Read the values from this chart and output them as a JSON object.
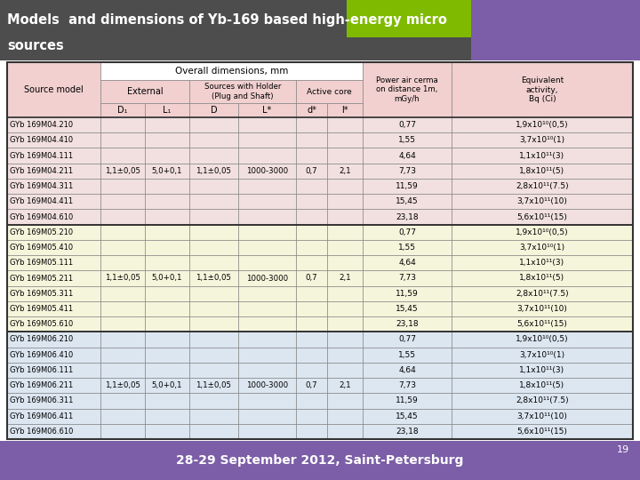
{
  "title_line1": "Models  and dimensions of Yb-169 based high-energy micro",
  "title_line2": "sources",
  "footer_text": "28-29 September 2012, Saint-Petersburg",
  "page_num": "19",
  "groups": [
    {
      "models": [
        "GYb 169M04.210",
        "GYb 169M04.410",
        "GYb 169M04.111",
        "GYb 169M04.211",
        "GYb 169M04.311",
        "GYb 169M04.411",
        "GYb 169M04.610"
      ],
      "D1": "1,1±0,05",
      "L1": "5,0+0,1",
      "D": "1,1±0,05",
      "L": "1000-3000",
      "d": "0,7",
      "l": "2,1",
      "power": [
        "0,77",
        "1,55",
        "4,64",
        "7,73",
        "11,59",
        "15,45",
        "23,18"
      ],
      "activity": [
        "1,9x10¹⁰(0,5)",
        "3,7x10¹⁰(1)",
        "1,1x10¹¹(3)",
        "1,8x10¹¹(5)",
        "2,8x10¹¹(7.5)",
        "3,7x10¹¹(10)",
        "5,6x10¹¹(15)"
      ],
      "bg": "#f2e0e0"
    },
    {
      "models": [
        "GYb 169M05.210",
        "GYb 169M05.410",
        "GYb 169M05.111",
        "GYb 169M05.211",
        "GYb 169M05.311",
        "GYb 169M05.411",
        "GYb 169M05.610"
      ],
      "D1": "1,1±0,05",
      "L1": "5,0+0,1",
      "D": "1,1±0,05",
      "L": "1000-3000",
      "d": "0,7",
      "l": "2,1",
      "power": [
        "0,77",
        "1,55",
        "4,64",
        "7,73",
        "11,59",
        "15,45",
        "23,18"
      ],
      "activity": [
        "1,9x10¹⁰(0,5)",
        "3,7x10¹⁰(1)",
        "1,1x10¹¹(3)",
        "1,8x10¹¹(5)",
        "2,8x10¹¹(7.5)",
        "3,7x10¹¹(10)",
        "5,6x10¹¹(15)"
      ],
      "bg": "#f5f5dc"
    },
    {
      "models": [
        "GYb 169M06.210",
        "GYb 169M06.410",
        "GYb 169M06.111",
        "GYb 169M06.211",
        "GYb 169M06.311",
        "GYb 169M06.411",
        "GYb 169M06.610"
      ],
      "D1": "1,1±0,05",
      "L1": "5,0+0,1",
      "D": "1,1±0,05",
      "L": "1000-3000",
      "d": "0,7",
      "l": "2,1",
      "power": [
        "0,77",
        "1,55",
        "4,64",
        "7,73",
        "11,59",
        "15,45",
        "23,18"
      ],
      "activity": [
        "1,9x10¹⁰(0,5)",
        "3,7x10¹⁰(1)",
        "1,1x10¹¹(3)",
        "1,8x10¹¹(5)",
        "2,8x10¹¹(7.5)",
        "3,7x10¹¹(10)",
        "5,6x10¹¹(15)"
      ],
      "bg": "#dce6f1"
    }
  ],
  "header_bg": "#f2d0d0",
  "overall_bg": "#ffffff",
  "title_bg": "#4d4d4d",
  "footer_bg": "#7b5ea7",
  "green_accent": "#7fba00",
  "purple_accent": "#7b5ea7"
}
